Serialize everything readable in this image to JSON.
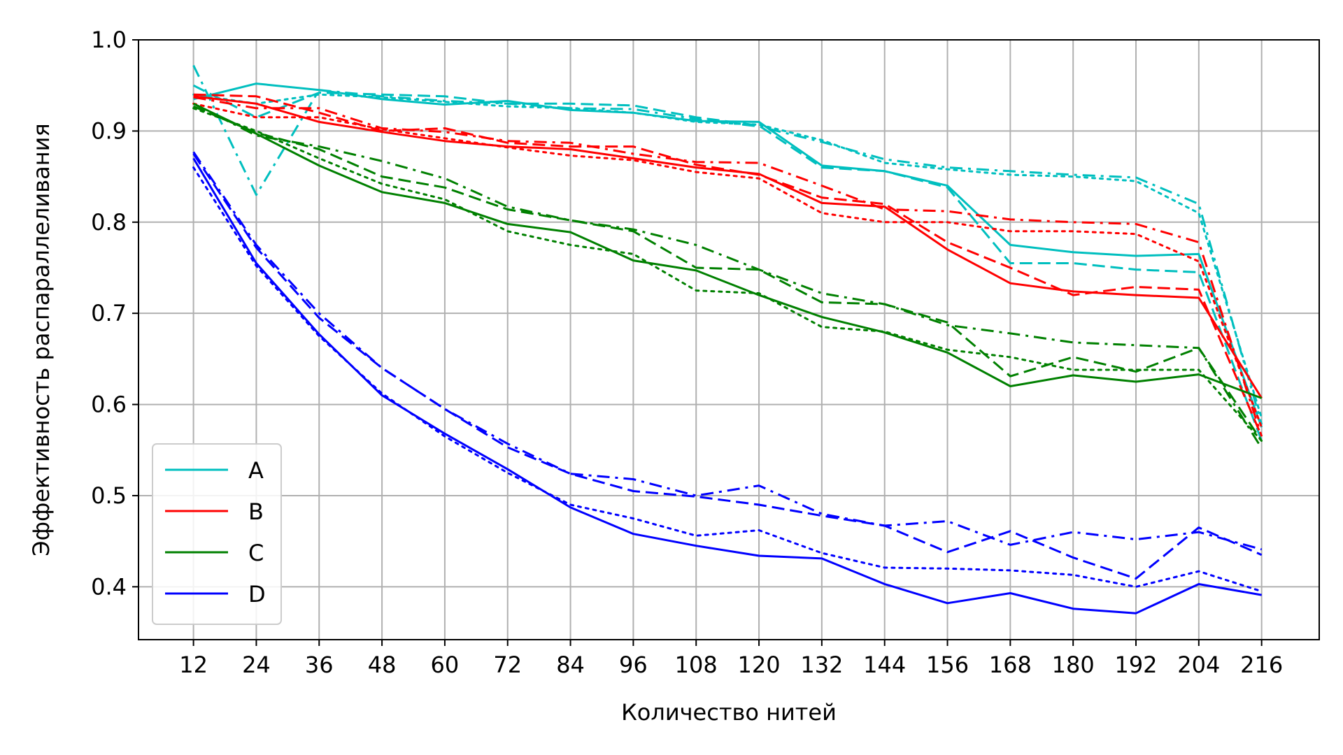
{
  "chart_data": {
    "type": "line",
    "title": "",
    "xlabel": "Количество нитей",
    "ylabel": "Эффективность распараллеливания",
    "x": [
      12,
      24,
      36,
      48,
      60,
      72,
      84,
      96,
      108,
      120,
      132,
      144,
      156,
      168,
      180,
      192,
      204,
      216
    ],
    "x_tick_labels": [
      "12",
      "24",
      "36",
      "48",
      "60",
      "72",
      "84",
      "96",
      "108",
      "120",
      "132",
      "144",
      "156",
      "168",
      "180",
      "192",
      "204",
      "216"
    ],
    "xlim": [
      1.5,
      227
    ],
    "ylim": [
      0.342,
      1.0
    ],
    "y_ticks": [
      0.4,
      0.5,
      0.6,
      0.7,
      0.8,
      0.9,
      1.0
    ],
    "y_tick_labels": [
      "0.4",
      "0.5",
      "0.6",
      "0.7",
      "0.8",
      "0.9",
      "1.0"
    ],
    "grid": true,
    "legend_position": "lower-left",
    "legend": [
      {
        "label": "A",
        "color": "#00bfbf"
      },
      {
        "label": "B",
        "color": "#ff0000"
      },
      {
        "label": "C",
        "color": "#008000"
      },
      {
        "label": "D",
        "color": "#0000ff"
      }
    ],
    "series": [
      {
        "group": "A",
        "color": "#00bfbf",
        "style": "solid",
        "values": [
          0.935,
          0.952,
          0.945,
          0.935,
          0.929,
          0.933,
          0.923,
          0.92,
          0.911,
          0.91,
          0.862,
          0.856,
          0.84,
          0.775,
          0.767,
          0.763,
          0.765,
          0.575
        ]
      },
      {
        "group": "A",
        "color": "#00bfbf",
        "style": "dashed",
        "values": [
          0.95,
          0.915,
          0.942,
          0.94,
          0.938,
          0.93,
          0.93,
          0.928,
          0.915,
          0.906,
          0.86,
          0.856,
          0.838,
          0.755,
          0.755,
          0.748,
          0.745,
          0.56
        ]
      },
      {
        "group": "A",
        "color": "#00bfbf",
        "style": "dashdot",
        "values": [
          0.972,
          0.83,
          0.945,
          0.938,
          0.933,
          0.93,
          0.925,
          0.924,
          0.913,
          0.905,
          0.888,
          0.869,
          0.86,
          0.856,
          0.852,
          0.849,
          0.82,
          0.578
        ]
      },
      {
        "group": "A",
        "color": "#00bfbf",
        "style": "dotted",
        "values": [
          0.94,
          0.93,
          0.94,
          0.937,
          0.932,
          0.927,
          0.925,
          0.92,
          0.91,
          0.907,
          0.89,
          0.865,
          0.858,
          0.852,
          0.85,
          0.845,
          0.81,
          0.585
        ]
      },
      {
        "group": "B",
        "color": "#ff0000",
        "style": "solid",
        "values": [
          0.938,
          0.93,
          0.91,
          0.899,
          0.889,
          0.883,
          0.88,
          0.87,
          0.86,
          0.853,
          0.821,
          0.817,
          0.77,
          0.733,
          0.724,
          0.72,
          0.717,
          0.607
        ]
      },
      {
        "group": "B",
        "color": "#ff0000",
        "style": "dashed",
        "values": [
          0.94,
          0.938,
          0.92,
          0.9,
          0.903,
          0.887,
          0.883,
          0.883,
          0.863,
          0.852,
          0.827,
          0.82,
          0.778,
          0.75,
          0.72,
          0.729,
          0.726,
          0.565
        ]
      },
      {
        "group": "B",
        "color": "#ff0000",
        "style": "dashdot",
        "values": [
          0.937,
          0.925,
          0.925,
          0.903,
          0.899,
          0.889,
          0.887,
          0.875,
          0.866,
          0.865,
          0.84,
          0.814,
          0.812,
          0.803,
          0.8,
          0.798,
          0.778,
          0.565
        ]
      },
      {
        "group": "B",
        "color": "#ff0000",
        "style": "dotted",
        "values": [
          0.93,
          0.915,
          0.915,
          0.902,
          0.892,
          0.882,
          0.873,
          0.868,
          0.855,
          0.848,
          0.81,
          0.8,
          0.8,
          0.79,
          0.79,
          0.787,
          0.757,
          0.575
        ]
      },
      {
        "group": "C",
        "color": "#008000",
        "style": "solid",
        "values": [
          0.93,
          0.897,
          0.862,
          0.833,
          0.821,
          0.798,
          0.789,
          0.758,
          0.747,
          0.72,
          0.696,
          0.679,
          0.657,
          0.62,
          0.632,
          0.625,
          0.633,
          0.607
        ]
      },
      {
        "group": "C",
        "color": "#008000",
        "style": "dashed",
        "values": [
          0.927,
          0.898,
          0.88,
          0.85,
          0.838,
          0.814,
          0.802,
          0.79,
          0.75,
          0.748,
          0.712,
          0.71,
          0.69,
          0.631,
          0.652,
          0.636,
          0.662,
          0.56
        ]
      },
      {
        "group": "C",
        "color": "#008000",
        "style": "dashdot",
        "values": [
          0.93,
          0.895,
          0.883,
          0.867,
          0.848,
          0.817,
          0.802,
          0.792,
          0.775,
          0.748,
          0.722,
          0.71,
          0.687,
          0.678,
          0.668,
          0.665,
          0.662,
          0.552
        ]
      },
      {
        "group": "C",
        "color": "#008000",
        "style": "dotted",
        "values": [
          0.925,
          0.9,
          0.87,
          0.842,
          0.825,
          0.79,
          0.775,
          0.765,
          0.725,
          0.722,
          0.685,
          0.68,
          0.66,
          0.652,
          0.638,
          0.638,
          0.638,
          0.56
        ]
      },
      {
        "group": "D",
        "color": "#0000ff",
        "style": "solid",
        "values": [
          0.87,
          0.755,
          0.677,
          0.61,
          0.568,
          0.529,
          0.487,
          0.458,
          0.445,
          0.434,
          0.431,
          0.403,
          0.382,
          0.393,
          0.376,
          0.371,
          0.403,
          0.391
        ]
      },
      {
        "group": "D",
        "color": "#0000ff",
        "style": "dashed",
        "values": [
          0.875,
          0.772,
          0.695,
          0.64,
          0.595,
          0.553,
          0.524,
          0.505,
          0.499,
          0.49,
          0.478,
          0.467,
          0.438,
          0.461,
          0.432,
          0.409,
          0.465,
          0.435
        ]
      },
      {
        "group": "D",
        "color": "#0000ff",
        "style": "dashdot",
        "values": [
          0.877,
          0.775,
          0.7,
          0.64,
          0.595,
          0.557,
          0.524,
          0.518,
          0.5,
          0.511,
          0.48,
          0.467,
          0.472,
          0.446,
          0.46,
          0.452,
          0.46,
          0.441
        ]
      },
      {
        "group": "D",
        "color": "#0000ff",
        "style": "dotted",
        "values": [
          0.86,
          0.752,
          0.675,
          0.612,
          0.565,
          0.525,
          0.49,
          0.475,
          0.456,
          0.462,
          0.437,
          0.421,
          0.42,
          0.418,
          0.413,
          0.4,
          0.417,
          0.395
        ]
      }
    ]
  }
}
